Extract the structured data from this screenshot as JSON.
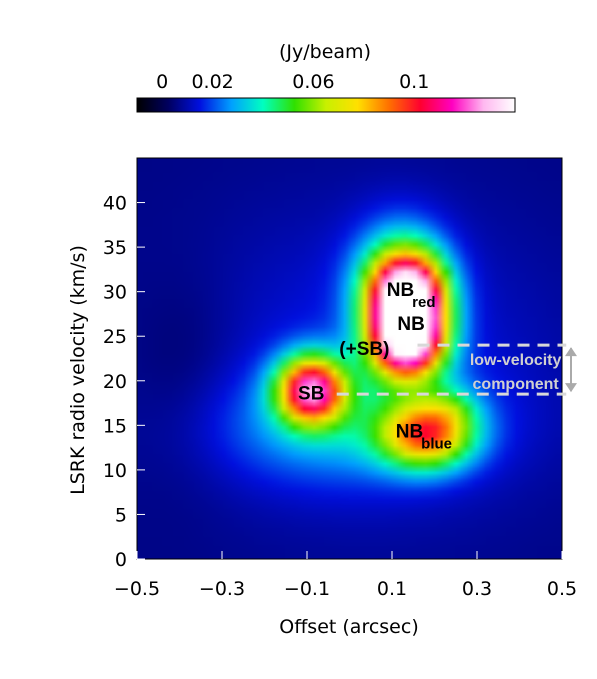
{
  "chart_data": {
    "type": "heatmap",
    "title": "",
    "xlabel": "Offset (arcsec)",
    "ylabel": "LSRK radio velocity  (km/s)",
    "xlim": [
      -0.5,
      0.5
    ],
    "ylim": [
      0,
      45
    ],
    "xticks": [
      {
        "value": -0.5,
        "label": "−0.5"
      },
      {
        "value": -0.3,
        "label": "−0.3"
      },
      {
        "value": -0.1,
        "label": "−0.1"
      },
      {
        "value": 0.1,
        "label": "0.1"
      },
      {
        "value": 0.3,
        "label": "0.3"
      },
      {
        "value": 0.5,
        "label": "0.5"
      }
    ],
    "yticks": [
      {
        "value": 0,
        "label": "0"
      },
      {
        "value": 5,
        "label": "5"
      },
      {
        "value": 10,
        "label": "10"
      },
      {
        "value": 15,
        "label": "15"
      },
      {
        "value": 20,
        "label": "20"
      },
      {
        "value": 25,
        "label": "25"
      },
      {
        "value": 30,
        "label": "30"
      },
      {
        "value": 35,
        "label": "35"
      },
      {
        "value": 40,
        "label": "40"
      }
    ],
    "colorbar": {
      "label": "(Jy/beam)",
      "range": [
        -0.01,
        0.14
      ],
      "ticks": [
        {
          "value": 0,
          "label": "0"
        },
        {
          "value": 0.02,
          "label": "0.02"
        },
        {
          "value": 0.06,
          "label": "0.06"
        },
        {
          "value": 0.1,
          "label": "0.1"
        }
      ],
      "colormap": [
        "#000000",
        "#000060",
        "#0010e0",
        "#00a0ff",
        "#00ffc0",
        "#30e000",
        "#c8f000",
        "#ffe000",
        "#ff7000",
        "#ff0030",
        "#ff00c0",
        "#ffb8f0",
        "#ffffff"
      ]
    },
    "background_level": 0.006,
    "dark_patch": {
      "x": -0.38,
      "y": 20,
      "sx": 0.09,
      "sy": 8,
      "amp": -0.005
    },
    "components": [
      {
        "x": 0.135,
        "y": 29.5,
        "sx": 0.06,
        "sy": 3.2,
        "amp": 0.12
      },
      {
        "x": 0.135,
        "y": 24.5,
        "sx": 0.06,
        "sy": 3.0,
        "amp": 0.125
      },
      {
        "x": 0.12,
        "y": 31.5,
        "sx": 0.075,
        "sy": 4.5,
        "amp": 0.035
      },
      {
        "x": 0.18,
        "y": 14.0,
        "sx": 0.075,
        "sy": 2.6,
        "amp": 0.075
      },
      {
        "x": 0.24,
        "y": 17.0,
        "sx": 0.045,
        "sy": 1.8,
        "amp": 0.015
      },
      {
        "x": -0.09,
        "y": 19.0,
        "sx": 0.055,
        "sy": 2.6,
        "amp": 0.105
      },
      {
        "x": -0.02,
        "y": 15.0,
        "sx": 0.22,
        "sy": 4.5,
        "amp": 0.02
      },
      {
        "x": 0.05,
        "y": 22.0,
        "sx": 0.3,
        "sy": 12.0,
        "amp": 0.01
      }
    ],
    "annotations": [
      {
        "text": "NB",
        "sub": "red",
        "x": 0.145,
        "y": 30.3
      },
      {
        "text": "NB",
        "sub": "",
        "x": 0.145,
        "y": 26.5
      },
      {
        "text": "(+SB)",
        "sub": "",
        "x": 0.035,
        "y": 23.7
      },
      {
        "text": "SB",
        "sub": "",
        "x": -0.09,
        "y": 18.7
      },
      {
        "text": "NB",
        "sub": "blue",
        "x": 0.175,
        "y": 14.4
      }
    ],
    "low_velocity_band": {
      "y_range": [
        18.5,
        24
      ],
      "x_from": 0.16,
      "x_lower_from": -0.03,
      "x_to": 0.51,
      "label_lines": [
        "low-velocity",
        "component"
      ]
    }
  }
}
